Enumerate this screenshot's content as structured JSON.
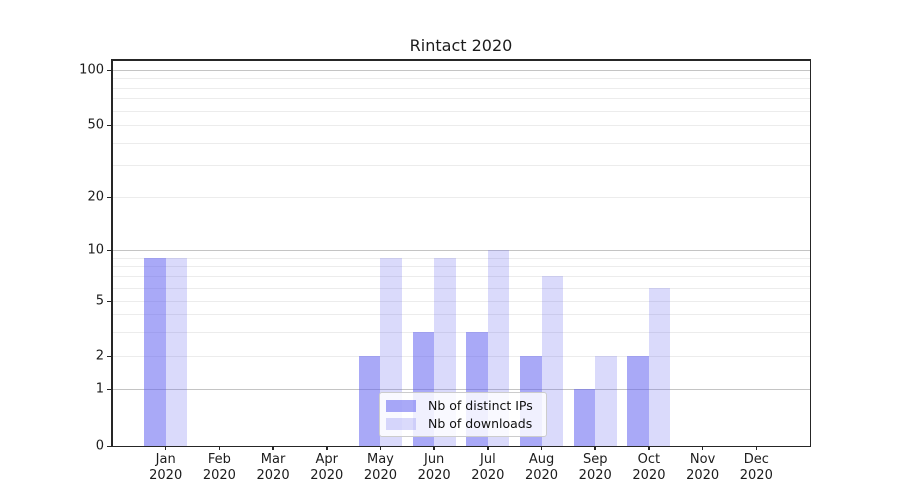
{
  "chart_data": {
    "type": "bar",
    "title": "Rintact 2020",
    "categories": [
      {
        "month": "Jan",
        "year": "2020"
      },
      {
        "month": "Feb",
        "year": "2020"
      },
      {
        "month": "Mar",
        "year": "2020"
      },
      {
        "month": "Apr",
        "year": "2020"
      },
      {
        "month": "May",
        "year": "2020"
      },
      {
        "month": "Jun",
        "year": "2020"
      },
      {
        "month": "Jul",
        "year": "2020"
      },
      {
        "month": "Aug",
        "year": "2020"
      },
      {
        "month": "Sep",
        "year": "2020"
      },
      {
        "month": "Oct",
        "year": "2020"
      },
      {
        "month": "Nov",
        "year": "2020"
      },
      {
        "month": "Dec",
        "year": "2020"
      }
    ],
    "series": [
      {
        "name": "Nb of distinct IPs",
        "color": "rgba(99,99,240,0.55)",
        "values": [
          9,
          0,
          0,
          0,
          2,
          3,
          3,
          2,
          1,
          2,
          0,
          0
        ]
      },
      {
        "name": "Nb of downloads",
        "color": "rgba(99,99,240,0.24)",
        "values": [
          9,
          0,
          0,
          0,
          9,
          9,
          10,
          7,
          2,
          6,
          0,
          0
        ]
      }
    ],
    "xlabel": "",
    "ylabel": "",
    "yscale": "symlog",
    "ylim": [
      0,
      100
    ],
    "y_ticks": [
      100,
      50,
      20,
      10,
      5,
      2,
      1,
      0
    ],
    "y_major_gridlines": [
      1,
      10,
      100
    ],
    "y_minor_gridlines": [
      2,
      3,
      4,
      5,
      6,
      7,
      8,
      9,
      20,
      30,
      40,
      50,
      60,
      70,
      80,
      90
    ],
    "grid": true,
    "legend_position": "lower center"
  },
  "colors": {
    "background": "#ffffff",
    "bar_distinct_ips": "#a9a9f4",
    "bar_downloads": "#d9d9fa",
    "gridline_major": "#c4c4c4",
    "gridline_minor": "#ececec",
    "spine": "#262626",
    "text": "#1c1c1c"
  }
}
